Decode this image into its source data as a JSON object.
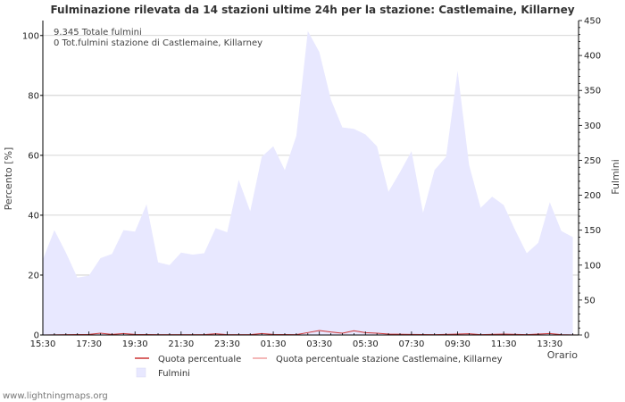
{
  "chart_data": {
    "type": "area",
    "title": "Fulminazione rilevata da 14 stazioni ultime 24h per la stazione: Castlemaine, Killarney",
    "xlabel": "Orario",
    "ylabel_left": "Percento   [%]",
    "ylabel_right": "Fulmini",
    "ylim_left": [
      0,
      105
    ],
    "ylim_right": [
      0,
      450
    ],
    "x_range_minutes": [
      0,
      1395
    ],
    "left_ticks": [
      0,
      20,
      40,
      60,
      80,
      100
    ],
    "right_ticks": [
      0,
      50,
      100,
      150,
      200,
      250,
      300,
      350,
      400,
      450
    ],
    "x_ticks": [
      {
        "label": "15:30",
        "minutes": 0
      },
      {
        "label": "17:30",
        "minutes": 120
      },
      {
        "label": "19:30",
        "minutes": 240
      },
      {
        "label": "21:30",
        "minutes": 360
      },
      {
        "label": "23:30",
        "minutes": 480
      },
      {
        "label": "01:30",
        "minutes": 600
      },
      {
        "label": "03:30",
        "minutes": 720
      },
      {
        "label": "05:30",
        "minutes": 840
      },
      {
        "label": "07:30",
        "minutes": 960
      },
      {
        "label": "09:30",
        "minutes": 1080
      },
      {
        "label": "11:30",
        "minutes": 1200
      },
      {
        "label": "13:30",
        "minutes": 1320
      }
    ],
    "series": [
      {
        "name": "Fulmini",
        "axis": "right",
        "color": "#e8e8ff",
        "x": [
          0,
          30,
          60,
          90,
          120,
          150,
          180,
          210,
          240,
          270,
          300,
          330,
          360,
          390,
          420,
          450,
          480,
          510,
          540,
          570,
          600,
          630,
          660,
          690,
          720,
          750,
          780,
          810,
          840,
          870,
          900,
          930,
          960,
          990,
          1020,
          1050,
          1080,
          1110,
          1140,
          1170,
          1200,
          1230,
          1260,
          1290,
          1320,
          1350,
          1380
        ],
        "values": [
          108,
          150,
          118,
          82,
          85,
          110,
          116,
          150,
          148,
          187,
          104,
          100,
          118,
          115,
          117,
          153,
          147,
          222,
          177,
          255,
          270,
          236,
          285,
          435,
          405,
          337,
          297,
          295,
          287,
          270,
          205,
          233,
          263,
          175,
          236,
          255,
          378,
          243,
          182,
          198,
          186,
          150,
          117,
          132,
          190,
          149,
          140
        ]
      },
      {
        "name": "Quota percentuale",
        "axis": "left",
        "color": "#cc3333",
        "x": [
          0,
          60,
          120,
          150,
          180,
          210,
          240,
          300,
          360,
          420,
          450,
          480,
          540,
          570,
          600,
          660,
          690,
          720,
          750,
          780,
          810,
          840,
          870,
          900,
          960,
          1020,
          1080,
          1110,
          1140,
          1200,
          1260,
          1320,
          1350,
          1395
        ],
        "values": [
          0.0,
          0.1,
          0.2,
          0.6,
          0.2,
          0.5,
          0.2,
          0.1,
          0.1,
          0.1,
          0.4,
          0.1,
          0.1,
          0.5,
          0.2,
          0.1,
          0.8,
          1.5,
          1.0,
          0.6,
          1.4,
          0.8,
          0.6,
          0.3,
          0.2,
          0.1,
          0.3,
          0.4,
          0.1,
          0.3,
          0.1,
          0.5,
          0.1,
          0.0
        ]
      },
      {
        "name": "Quota percentuale stazione Castlemaine, Killarney",
        "axis": "left",
        "color": "#f0a0a0",
        "x": [
          0,
          1395
        ],
        "values": [
          0,
          0
        ]
      }
    ],
    "annotations": [
      "9.345 Totale fulmini",
      "0 Tot.fulmini stazione di Castlemaine, Killarney"
    ],
    "legend_position": "bottom",
    "grid": true
  },
  "footer": "www.lightningmaps.org"
}
